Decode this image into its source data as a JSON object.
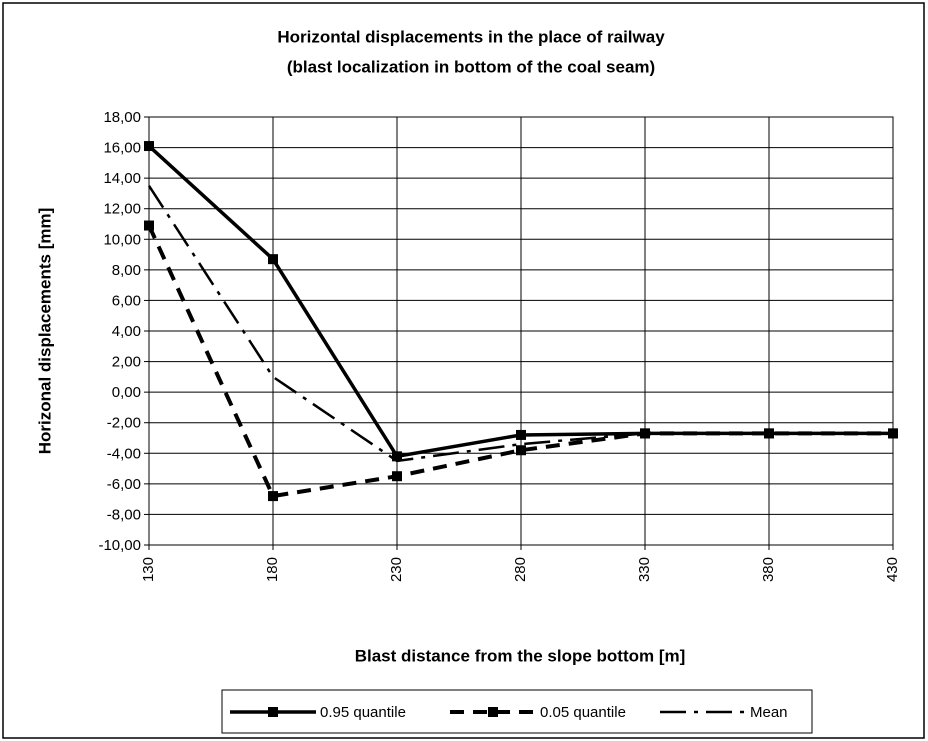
{
  "chart_data": {
    "type": "line",
    "title": "Horizontal displacements in the place of  railway",
    "subtitle": "(blast localization in bottom of the coal seam)",
    "x_label": "Blast distance from the slope bottom [m]",
    "y_label": "Horizonal displacements [mm]",
    "x": [
      130,
      180,
      230,
      280,
      330,
      380,
      430
    ],
    "series": [
      {
        "name": "0.95 quantile",
        "color": "#000000",
        "line_style": "solid",
        "marker": "square",
        "values": [
          16.1,
          8.7,
          -4.2,
          -2.8,
          -2.7,
          -2.7,
          -2.7
        ]
      },
      {
        "name": "0.05 quantile",
        "color": "#000000",
        "line_style": "dashed",
        "marker": "square",
        "values": [
          10.9,
          -6.8,
          -5.5,
          -3.8,
          -2.7,
          -2.7,
          -2.7
        ]
      },
      {
        "name": "Mean",
        "color": "#000000",
        "line_style": "dashdot",
        "marker": "none",
        "values": [
          13.5,
          1.0,
          -4.5,
          -3.4,
          -2.7,
          -2.7,
          -2.7
        ]
      }
    ],
    "xlim": [
      130,
      430
    ],
    "xticks": [
      130,
      180,
      230,
      280,
      330,
      380,
      430
    ],
    "ylim": [
      -10,
      18
    ],
    "yticks": [
      {
        "value": -10,
        "label": "-10,00"
      },
      {
        "value": -8,
        "label": "-8,00"
      },
      {
        "value": -6,
        "label": "-6,00"
      },
      {
        "value": -4,
        "label": "-4,00"
      },
      {
        "value": -2,
        "label": "-2,00"
      },
      {
        "value": 0,
        "label": "0,00"
      },
      {
        "value": 2,
        "label": "2,00"
      },
      {
        "value": 4,
        "label": "4,00"
      },
      {
        "value": 6,
        "label": "6,00"
      },
      {
        "value": 8,
        "label": "8,00"
      },
      {
        "value": 10,
        "label": "10,00"
      },
      {
        "value": 12,
        "label": "12,00"
      },
      {
        "value": 14,
        "label": "14,00"
      },
      {
        "value": 16,
        "label": "16,00"
      },
      {
        "value": 18,
        "label": "18,00"
      }
    ],
    "grid": true,
    "legend": "bottom"
  }
}
